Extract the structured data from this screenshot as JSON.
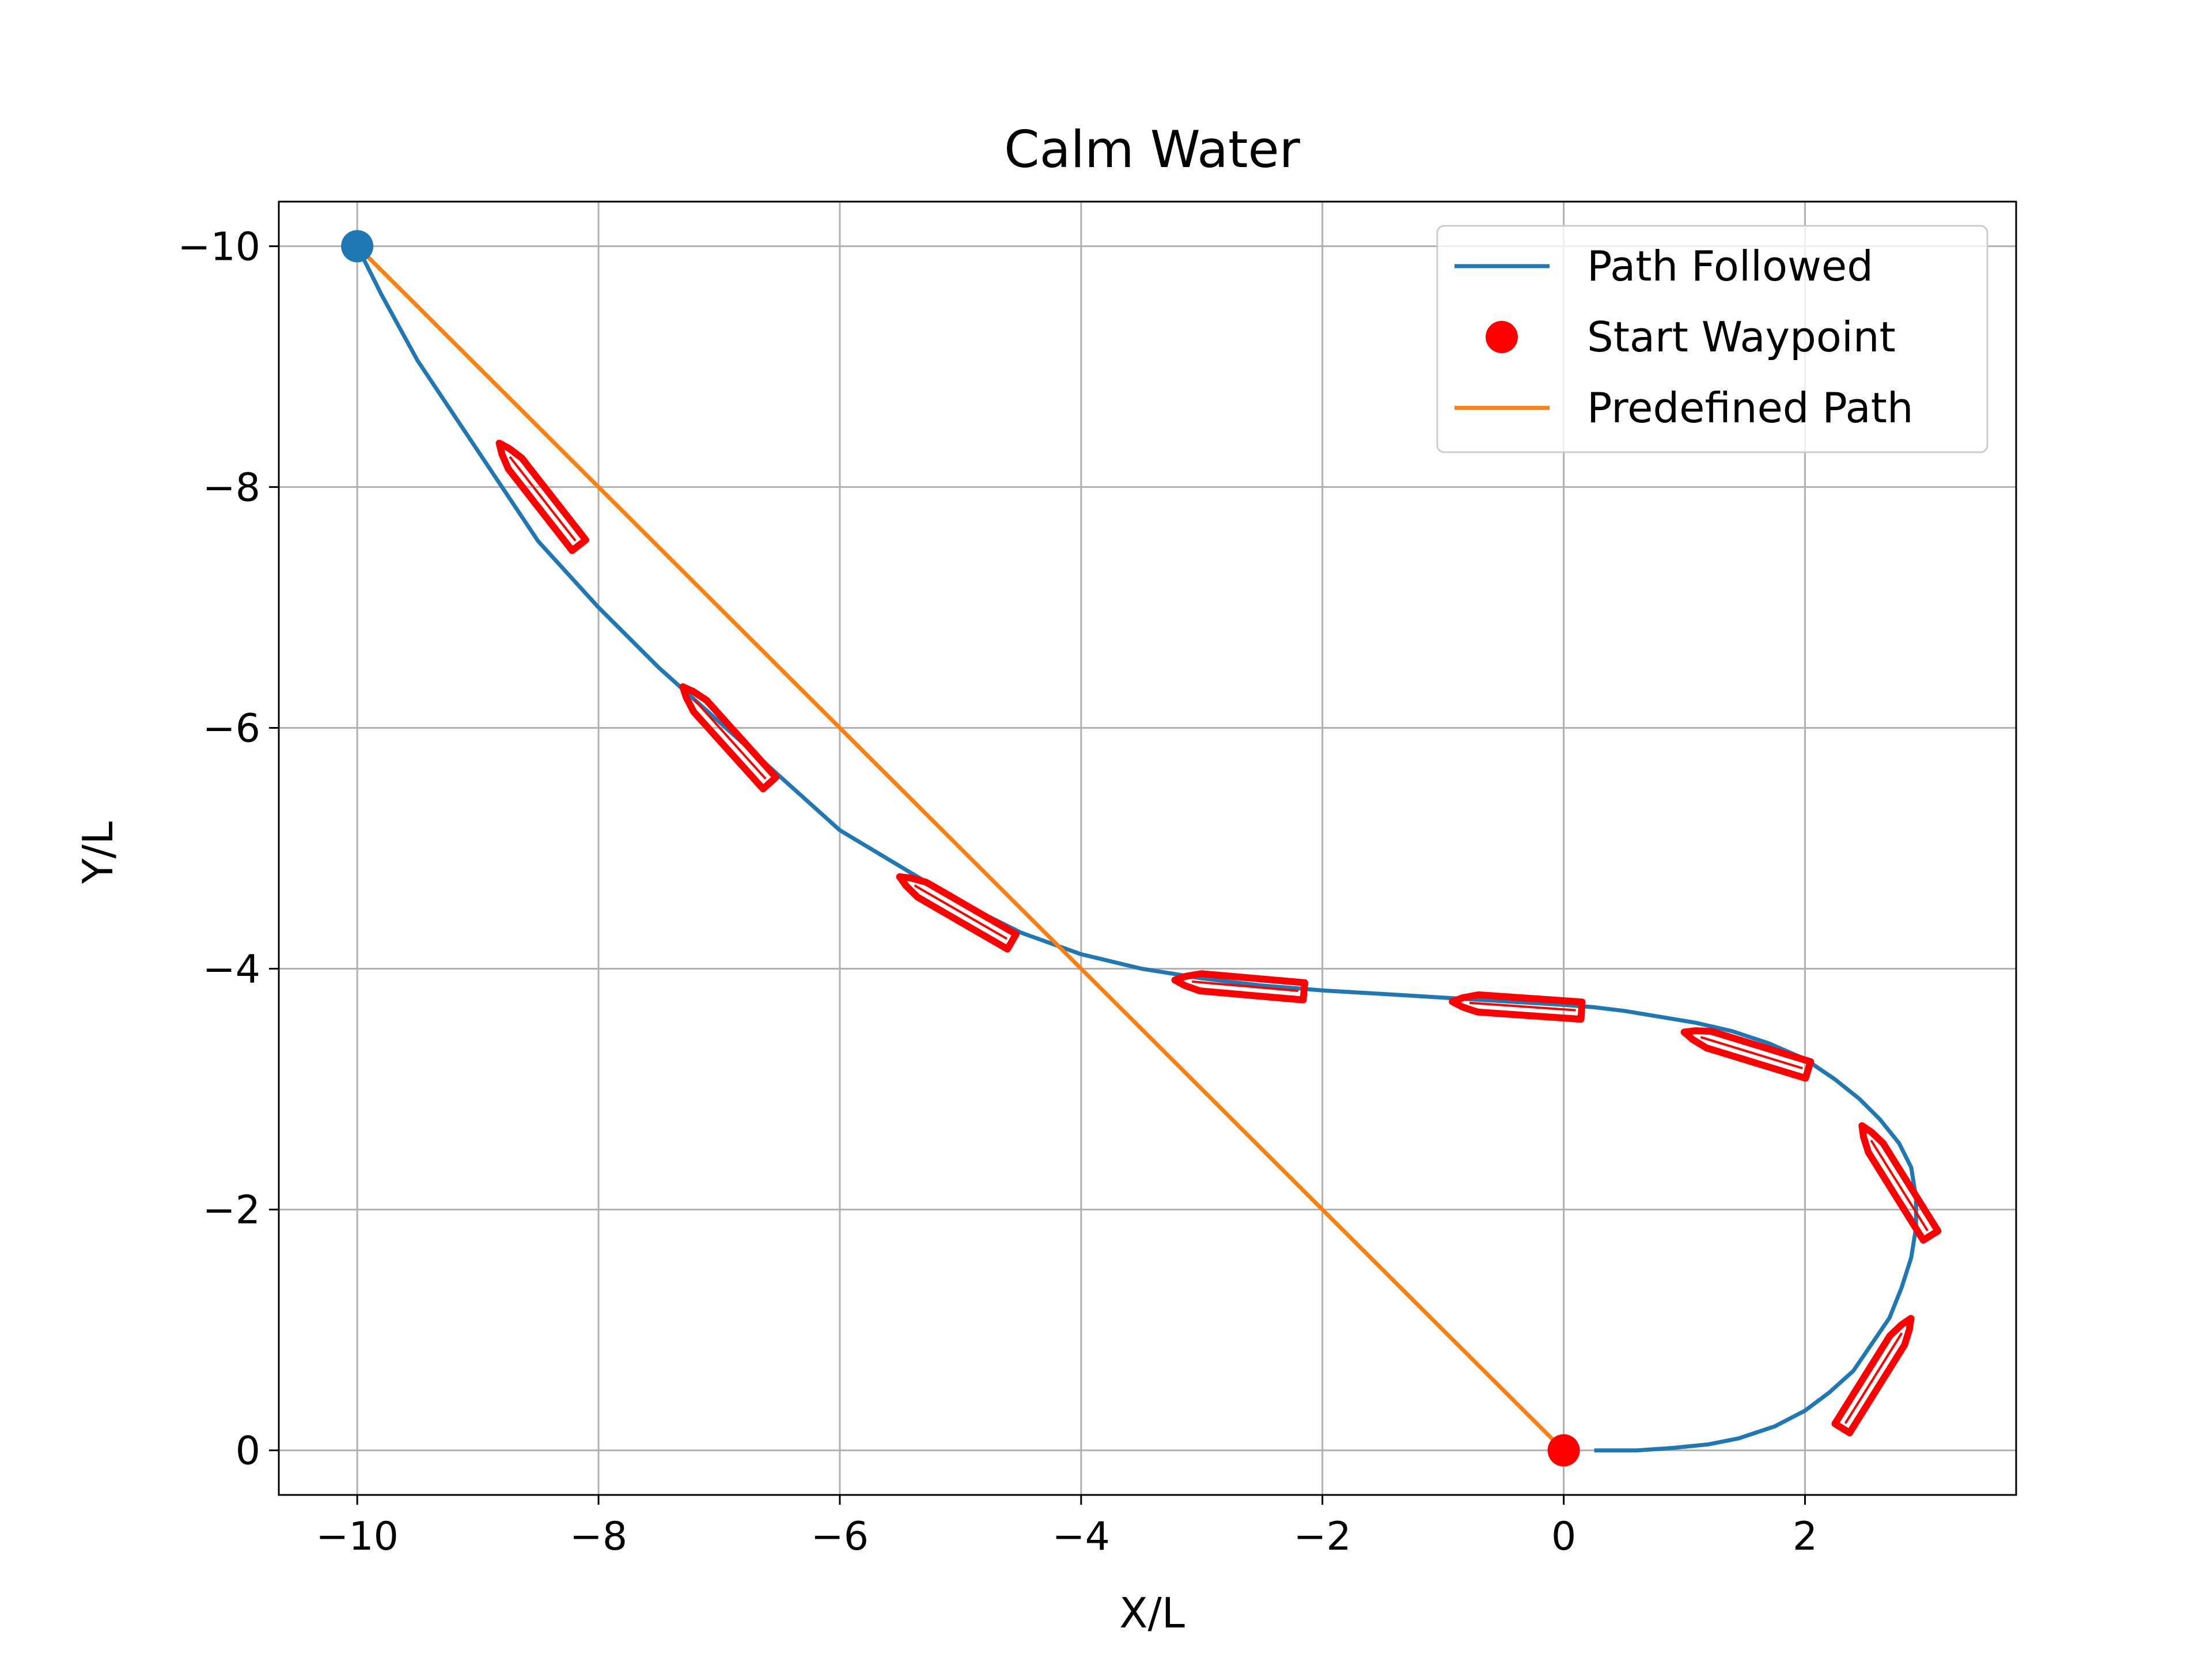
{
  "chart_data": {
    "type": "line",
    "title": "Calm Water",
    "xlabel": "X/L",
    "ylabel": "Y/L",
    "xlim": [
      -10.65,
      3.75
    ],
    "ylim": [
      0.37,
      -10.37
    ],
    "y_inverted": true,
    "grid": true,
    "legend_position": "top-right",
    "x_ticks": [
      -10,
      -8,
      -6,
      -4,
      -2,
      0,
      2
    ],
    "x_tick_labels": [
      "−10",
      "−8",
      "−6",
      "−4",
      "−2",
      "0",
      "2"
    ],
    "y_ticks": [
      -10,
      -8,
      -6,
      -4,
      -2,
      0
    ],
    "y_tick_labels": [
      "−10",
      "−8",
      "−6",
      "−4",
      "−2",
      "0"
    ],
    "legend": [
      {
        "label": "Path Followed",
        "kind": "line",
        "color": "#1f77b4"
      },
      {
        "label": "Start Waypoint",
        "kind": "marker",
        "color": "#ff0000"
      },
      {
        "label": "Predefined Path",
        "kind": "line",
        "color": "#ff7f0e"
      }
    ],
    "series": [
      {
        "name": "Path Followed",
        "color": "#1f77b4",
        "x": [
          0.27,
          0.6,
          0.9,
          1.2,
          1.45,
          1.75,
          2.0,
          2.2,
          2.4,
          2.55,
          2.7,
          2.8,
          2.88,
          2.92,
          2.92,
          2.88,
          2.78,
          2.62,
          2.45,
          2.25,
          2.0,
          1.7,
          1.4,
          1.1,
          0.8,
          0.5,
          0.25,
          0.0,
          -0.5,
          -1.0,
          -1.5,
          -2.0,
          -2.5,
          -3.0,
          -3.5,
          -4.0,
          -4.5,
          -5.0,
          -5.5,
          -6.0,
          -6.5,
          -7.0,
          -7.5,
          -8.0,
          -8.5,
          -9.0,
          -9.5,
          -9.8,
          -10.0
        ],
        "y": [
          0.0,
          0.0,
          -0.02,
          -0.05,
          -0.1,
          -0.2,
          -0.33,
          -0.48,
          -0.66,
          -0.88,
          -1.1,
          -1.35,
          -1.6,
          -1.85,
          -2.1,
          -2.35,
          -2.55,
          -2.75,
          -2.92,
          -3.08,
          -3.25,
          -3.38,
          -3.48,
          -3.55,
          -3.6,
          -3.65,
          -3.68,
          -3.7,
          -3.73,
          -3.76,
          -3.79,
          -3.82,
          -3.86,
          -3.92,
          -4.0,
          -4.12,
          -4.3,
          -4.55,
          -4.85,
          -5.15,
          -5.6,
          -6.05,
          -6.5,
          -7.0,
          -7.55,
          -8.3,
          -9.05,
          -9.6,
          -10.0
        ]
      },
      {
        "name": "Predefined Path",
        "color": "#ff7f0e",
        "x": [
          -10,
          0
        ],
        "y": [
          -10,
          0
        ]
      }
    ],
    "markers": [
      {
        "label": "Start Waypoint",
        "x": 0,
        "y": 0,
        "color": "#ff0000"
      },
      {
        "label": "",
        "x": -10,
        "y": -10,
        "color": "#1f77b4"
      }
    ],
    "vessels": [
      {
        "x": -8.5,
        "y": -7.95,
        "heading_deg": -128
      },
      {
        "x": -6.95,
        "y": -5.95,
        "heading_deg": -132
      },
      {
        "x": -5.05,
        "y": -4.5,
        "heading_deg": -150
      },
      {
        "x": -2.7,
        "y": -3.86,
        "heading_deg": -175
      },
      {
        "x": -0.4,
        "y": -3.69,
        "heading_deg": -176
      },
      {
        "x": 1.5,
        "y": -3.32,
        "heading_deg": -163
      },
      {
        "x": 2.75,
        "y": -2.25,
        "heading_deg": -122
      },
      {
        "x": 2.6,
        "y": -0.65,
        "heading_deg": -58
      }
    ],
    "vessel_color": "#ff0000"
  }
}
